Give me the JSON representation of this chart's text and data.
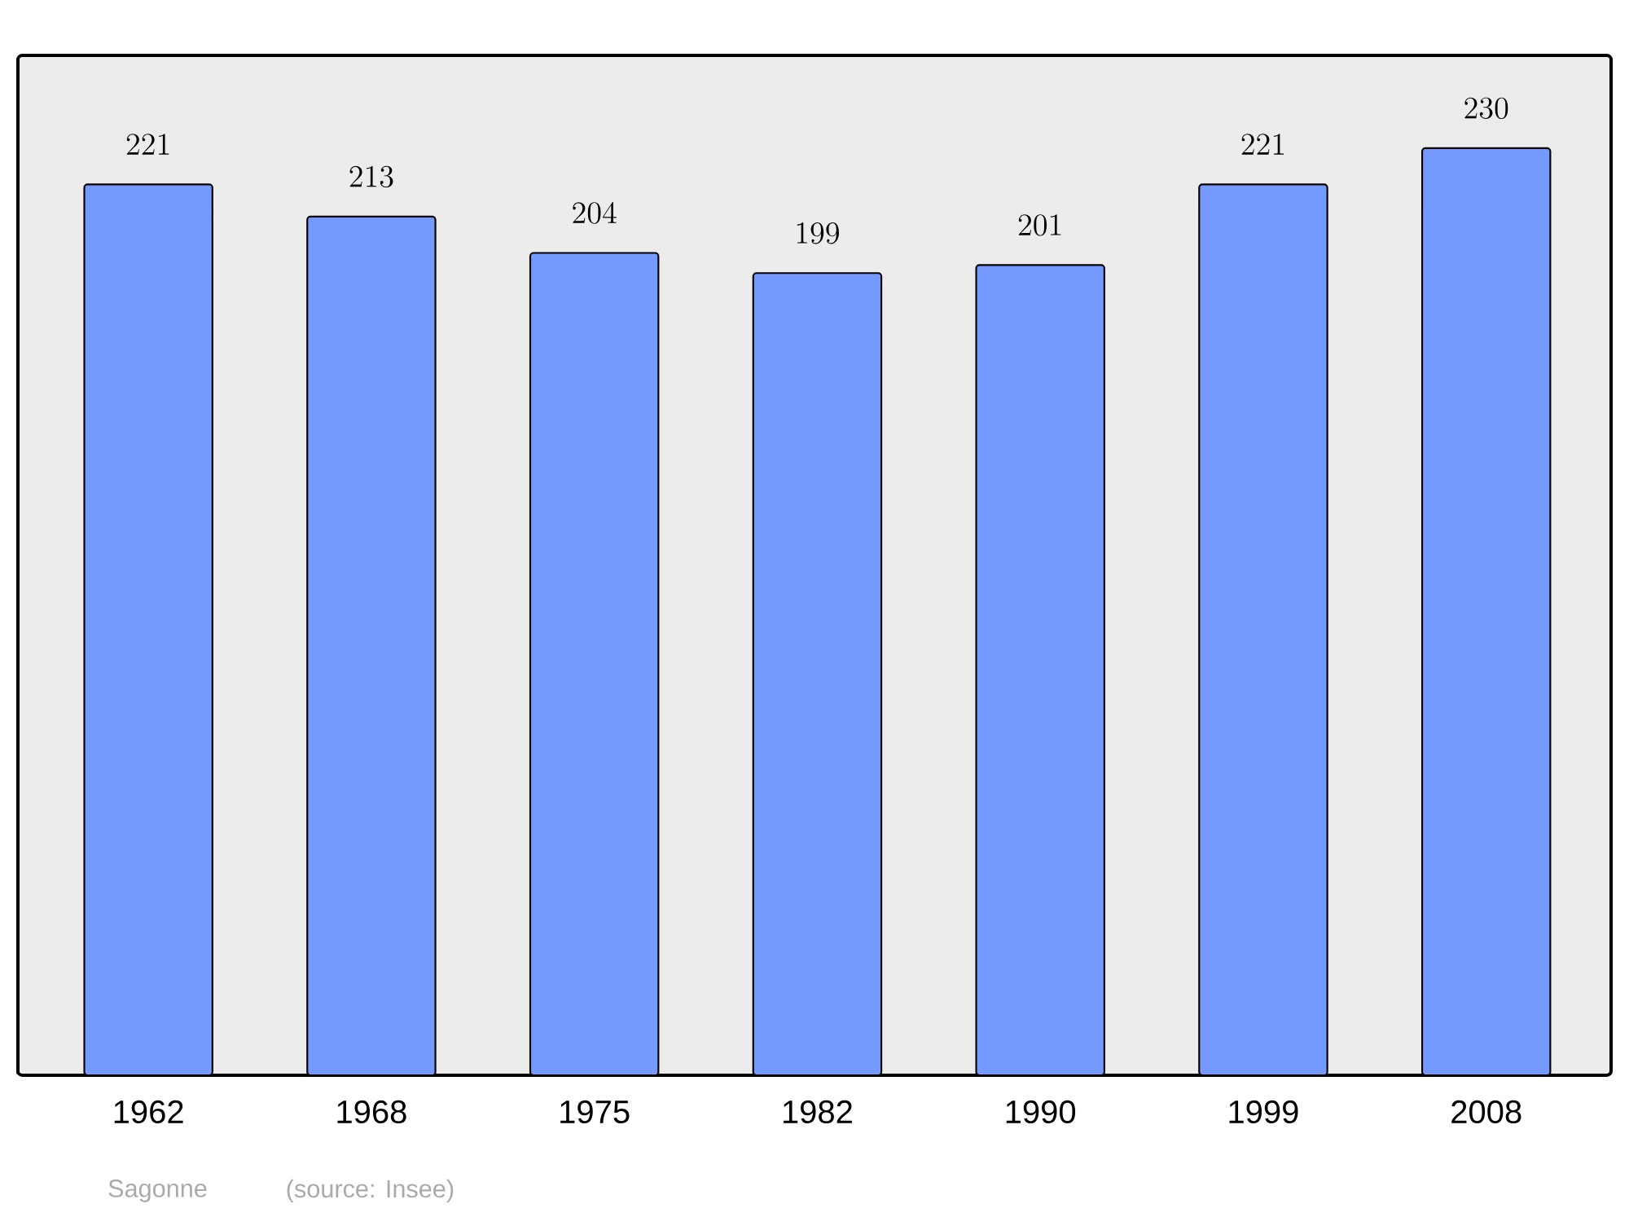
{
  "chart_data": {
    "type": "bar",
    "categories": [
      "1962",
      "1968",
      "1975",
      "1982",
      "1990",
      "1999",
      "2008"
    ],
    "values": [
      221,
      213,
      204,
      199,
      201,
      221,
      230
    ],
    "color": "#7499ff",
    "data_labels": true,
    "annotations": [
      "Sagonne",
      "(source: Insee)"
    ]
  }
}
